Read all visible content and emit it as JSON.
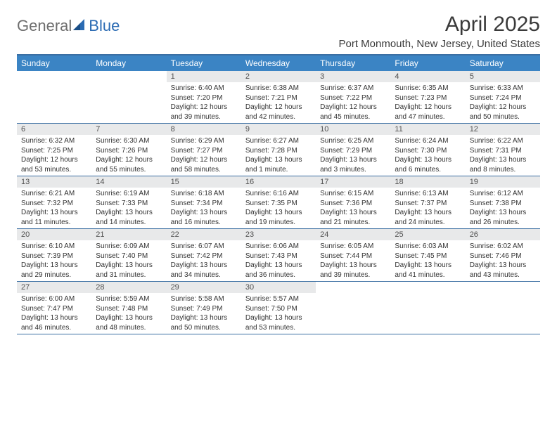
{
  "logo": {
    "general": "General",
    "blue": "Blue"
  },
  "title": "April 2025",
  "subtitle": "Port Monmouth, New Jersey, United States",
  "colors": {
    "header_bg": "#3b84c4",
    "date_bg": "#e8e9ea",
    "rule": "#3b6fa3",
    "text": "#333333"
  },
  "day_headers": [
    "Sunday",
    "Monday",
    "Tuesday",
    "Wednesday",
    "Thursday",
    "Friday",
    "Saturday"
  ],
  "weeks": [
    [
      {
        "date": "",
        "sunrise": "",
        "sunset": "",
        "daylight1": "",
        "daylight2": ""
      },
      {
        "date": "",
        "sunrise": "",
        "sunset": "",
        "daylight1": "",
        "daylight2": ""
      },
      {
        "date": "1",
        "sunrise": "Sunrise: 6:40 AM",
        "sunset": "Sunset: 7:20 PM",
        "daylight1": "Daylight: 12 hours",
        "daylight2": "and 39 minutes."
      },
      {
        "date": "2",
        "sunrise": "Sunrise: 6:38 AM",
        "sunset": "Sunset: 7:21 PM",
        "daylight1": "Daylight: 12 hours",
        "daylight2": "and 42 minutes."
      },
      {
        "date": "3",
        "sunrise": "Sunrise: 6:37 AM",
        "sunset": "Sunset: 7:22 PM",
        "daylight1": "Daylight: 12 hours",
        "daylight2": "and 45 minutes."
      },
      {
        "date": "4",
        "sunrise": "Sunrise: 6:35 AM",
        "sunset": "Sunset: 7:23 PM",
        "daylight1": "Daylight: 12 hours",
        "daylight2": "and 47 minutes."
      },
      {
        "date": "5",
        "sunrise": "Sunrise: 6:33 AM",
        "sunset": "Sunset: 7:24 PM",
        "daylight1": "Daylight: 12 hours",
        "daylight2": "and 50 minutes."
      }
    ],
    [
      {
        "date": "6",
        "sunrise": "Sunrise: 6:32 AM",
        "sunset": "Sunset: 7:25 PM",
        "daylight1": "Daylight: 12 hours",
        "daylight2": "and 53 minutes."
      },
      {
        "date": "7",
        "sunrise": "Sunrise: 6:30 AM",
        "sunset": "Sunset: 7:26 PM",
        "daylight1": "Daylight: 12 hours",
        "daylight2": "and 55 minutes."
      },
      {
        "date": "8",
        "sunrise": "Sunrise: 6:29 AM",
        "sunset": "Sunset: 7:27 PM",
        "daylight1": "Daylight: 12 hours",
        "daylight2": "and 58 minutes."
      },
      {
        "date": "9",
        "sunrise": "Sunrise: 6:27 AM",
        "sunset": "Sunset: 7:28 PM",
        "daylight1": "Daylight: 13 hours",
        "daylight2": "and 1 minute."
      },
      {
        "date": "10",
        "sunrise": "Sunrise: 6:25 AM",
        "sunset": "Sunset: 7:29 PM",
        "daylight1": "Daylight: 13 hours",
        "daylight2": "and 3 minutes."
      },
      {
        "date": "11",
        "sunrise": "Sunrise: 6:24 AM",
        "sunset": "Sunset: 7:30 PM",
        "daylight1": "Daylight: 13 hours",
        "daylight2": "and 6 minutes."
      },
      {
        "date": "12",
        "sunrise": "Sunrise: 6:22 AM",
        "sunset": "Sunset: 7:31 PM",
        "daylight1": "Daylight: 13 hours",
        "daylight2": "and 8 minutes."
      }
    ],
    [
      {
        "date": "13",
        "sunrise": "Sunrise: 6:21 AM",
        "sunset": "Sunset: 7:32 PM",
        "daylight1": "Daylight: 13 hours",
        "daylight2": "and 11 minutes."
      },
      {
        "date": "14",
        "sunrise": "Sunrise: 6:19 AM",
        "sunset": "Sunset: 7:33 PM",
        "daylight1": "Daylight: 13 hours",
        "daylight2": "and 14 minutes."
      },
      {
        "date": "15",
        "sunrise": "Sunrise: 6:18 AM",
        "sunset": "Sunset: 7:34 PM",
        "daylight1": "Daylight: 13 hours",
        "daylight2": "and 16 minutes."
      },
      {
        "date": "16",
        "sunrise": "Sunrise: 6:16 AM",
        "sunset": "Sunset: 7:35 PM",
        "daylight1": "Daylight: 13 hours",
        "daylight2": "and 19 minutes."
      },
      {
        "date": "17",
        "sunrise": "Sunrise: 6:15 AM",
        "sunset": "Sunset: 7:36 PM",
        "daylight1": "Daylight: 13 hours",
        "daylight2": "and 21 minutes."
      },
      {
        "date": "18",
        "sunrise": "Sunrise: 6:13 AM",
        "sunset": "Sunset: 7:37 PM",
        "daylight1": "Daylight: 13 hours",
        "daylight2": "and 24 minutes."
      },
      {
        "date": "19",
        "sunrise": "Sunrise: 6:12 AM",
        "sunset": "Sunset: 7:38 PM",
        "daylight1": "Daylight: 13 hours",
        "daylight2": "and 26 minutes."
      }
    ],
    [
      {
        "date": "20",
        "sunrise": "Sunrise: 6:10 AM",
        "sunset": "Sunset: 7:39 PM",
        "daylight1": "Daylight: 13 hours",
        "daylight2": "and 29 minutes."
      },
      {
        "date": "21",
        "sunrise": "Sunrise: 6:09 AM",
        "sunset": "Sunset: 7:40 PM",
        "daylight1": "Daylight: 13 hours",
        "daylight2": "and 31 minutes."
      },
      {
        "date": "22",
        "sunrise": "Sunrise: 6:07 AM",
        "sunset": "Sunset: 7:42 PM",
        "daylight1": "Daylight: 13 hours",
        "daylight2": "and 34 minutes."
      },
      {
        "date": "23",
        "sunrise": "Sunrise: 6:06 AM",
        "sunset": "Sunset: 7:43 PM",
        "daylight1": "Daylight: 13 hours",
        "daylight2": "and 36 minutes."
      },
      {
        "date": "24",
        "sunrise": "Sunrise: 6:05 AM",
        "sunset": "Sunset: 7:44 PM",
        "daylight1": "Daylight: 13 hours",
        "daylight2": "and 39 minutes."
      },
      {
        "date": "25",
        "sunrise": "Sunrise: 6:03 AM",
        "sunset": "Sunset: 7:45 PM",
        "daylight1": "Daylight: 13 hours",
        "daylight2": "and 41 minutes."
      },
      {
        "date": "26",
        "sunrise": "Sunrise: 6:02 AM",
        "sunset": "Sunset: 7:46 PM",
        "daylight1": "Daylight: 13 hours",
        "daylight2": "and 43 minutes."
      }
    ],
    [
      {
        "date": "27",
        "sunrise": "Sunrise: 6:00 AM",
        "sunset": "Sunset: 7:47 PM",
        "daylight1": "Daylight: 13 hours",
        "daylight2": "and 46 minutes."
      },
      {
        "date": "28",
        "sunrise": "Sunrise: 5:59 AM",
        "sunset": "Sunset: 7:48 PM",
        "daylight1": "Daylight: 13 hours",
        "daylight2": "and 48 minutes."
      },
      {
        "date": "29",
        "sunrise": "Sunrise: 5:58 AM",
        "sunset": "Sunset: 7:49 PM",
        "daylight1": "Daylight: 13 hours",
        "daylight2": "and 50 minutes."
      },
      {
        "date": "30",
        "sunrise": "Sunrise: 5:57 AM",
        "sunset": "Sunset: 7:50 PM",
        "daylight1": "Daylight: 13 hours",
        "daylight2": "and 53 minutes."
      },
      {
        "date": "",
        "sunrise": "",
        "sunset": "",
        "daylight1": "",
        "daylight2": ""
      },
      {
        "date": "",
        "sunrise": "",
        "sunset": "",
        "daylight1": "",
        "daylight2": ""
      },
      {
        "date": "",
        "sunrise": "",
        "sunset": "",
        "daylight1": "",
        "daylight2": ""
      }
    ]
  ]
}
